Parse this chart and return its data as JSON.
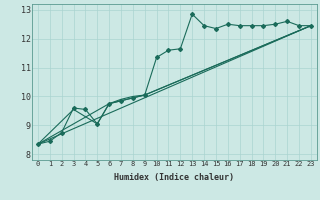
{
  "xlabel": "Humidex (Indice chaleur)",
  "ylabel": "",
  "bg_color": "#cce8e4",
  "line_color": "#1a6b5a",
  "xlim": [
    -0.5,
    23.5
  ],
  "ylim": [
    7.8,
    13.2
  ],
  "xticks": [
    0,
    1,
    2,
    3,
    4,
    5,
    6,
    7,
    8,
    9,
    10,
    11,
    12,
    13,
    14,
    15,
    16,
    17,
    18,
    19,
    20,
    21,
    22,
    23
  ],
  "yticks": [
    8,
    9,
    10,
    11,
    12,
    13
  ],
  "series": [
    [
      0,
      8.35
    ],
    [
      1,
      8.45
    ],
    [
      2,
      8.75
    ],
    [
      3,
      9.6
    ],
    [
      4,
      9.55
    ],
    [
      5,
      9.05
    ],
    [
      6,
      9.75
    ],
    [
      7,
      9.85
    ],
    [
      8,
      9.95
    ],
    [
      9,
      10.05
    ],
    [
      10,
      11.35
    ],
    [
      11,
      11.6
    ],
    [
      12,
      11.65
    ],
    [
      13,
      12.85
    ],
    [
      14,
      12.45
    ],
    [
      15,
      12.35
    ],
    [
      16,
      12.5
    ],
    [
      17,
      12.45
    ],
    [
      18,
      12.45
    ],
    [
      19,
      12.45
    ],
    [
      20,
      12.5
    ],
    [
      21,
      12.6
    ],
    [
      22,
      12.45
    ],
    [
      23,
      12.45
    ]
  ],
  "line2": [
    [
      0,
      8.35
    ],
    [
      3,
      9.55
    ],
    [
      5,
      9.05
    ],
    [
      6,
      9.75
    ],
    [
      7,
      9.9
    ],
    [
      8,
      10.0
    ],
    [
      9,
      10.05
    ],
    [
      23,
      12.45
    ]
  ],
  "line3": [
    [
      0,
      8.35
    ],
    [
      23,
      12.45
    ]
  ],
  "line4": [
    [
      0,
      8.35
    ],
    [
      6,
      9.75
    ],
    [
      9,
      10.05
    ],
    [
      23,
      12.45
    ]
  ],
  "grid_color": "#aad4d0",
  "tick_color": "#333333",
  "xlabel_fontsize": 6.0,
  "ytick_fontsize": 6.0,
  "xtick_fontsize": 5.0,
  "lw": 0.8,
  "ms": 2.0
}
